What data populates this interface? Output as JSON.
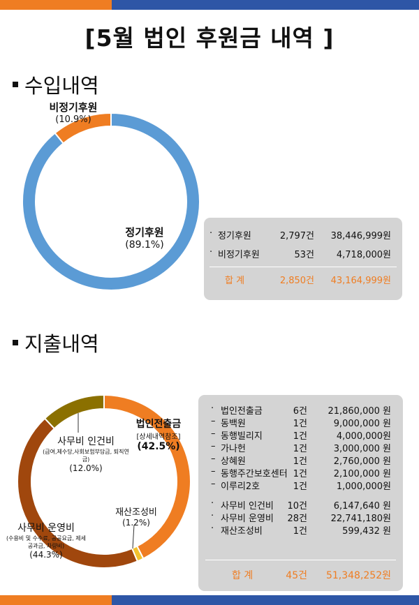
{
  "title": "[5월 법인 후원금 내역 ]",
  "sections": {
    "income": "수입내역",
    "expense": "지출내역"
  },
  "colors": {
    "orange": "#ef7d22",
    "blue": "#5b9bd5",
    "navy": "#2e56a6",
    "brown": "#a0470d",
    "olive": "#8b7000",
    "yellow": "#f2c12e",
    "gray_box": "#d4d4d4"
  },
  "income_table": {
    "rows": [
      {
        "bullet": "·",
        "name": "정기후원",
        "count": "2,797건",
        "amount": "38,446,999원"
      },
      {
        "bullet": "·",
        "name": "비정기후원",
        "count": "53건",
        "amount": "4,718,000원"
      }
    ],
    "total": {
      "label": "합  계",
      "count": "2,850건",
      "amount": "43,164,999원"
    }
  },
  "expense_table": {
    "rows": [
      {
        "bullet": "·",
        "name": "법인전출금",
        "count": "6건",
        "amount": "21,860,000 원"
      },
      {
        "bullet": "–",
        "name": "동백원",
        "count": "1건",
        "amount": "9,000,000 원"
      },
      {
        "bullet": "–",
        "name": "동행빌리지",
        "count": "1건",
        "amount": "4,000,000원"
      },
      {
        "bullet": "–",
        "name": "가나헌",
        "count": "1건",
        "amount": "3,000,000 원"
      },
      {
        "bullet": "–",
        "name": "상혜원",
        "count": "1건",
        "amount": "2,760,000 원"
      },
      {
        "bullet": "–",
        "name": "동행주간보호센터",
        "count": "1건",
        "amount": "2,100,000 원"
      },
      {
        "bullet": "–",
        "name": "이루리2호",
        "count": "1건",
        "amount": "1,000,000원"
      },
      {
        "bullet": "·",
        "name": "사무비 인건비",
        "count": "10건",
        "amount": "6,147,640 원"
      },
      {
        "bullet": "·",
        "name": "사무비 운영비",
        "count": "28건",
        "amount": "22,741,180원"
      },
      {
        "bullet": "·",
        "name": "재산조성비",
        "count": "1건",
        "amount": "599,432 원"
      }
    ],
    "total": {
      "label": "합  계",
      "count": "45건",
      "amount": "51,348,252원"
    }
  },
  "chart_data": [
    {
      "type": "pie",
      "donut": true,
      "slices": [
        {
          "label": "정기후원",
          "value": 89.1,
          "pct_text": "(89.1%)",
          "color": "#5b9bd5"
        },
        {
          "label": "비정기후원",
          "value": 10.9,
          "pct_text": "(10.9%)",
          "color": "#ef7d22"
        }
      ]
    },
    {
      "type": "pie",
      "donut": true,
      "slices": [
        {
          "label": "법인전출금",
          "note": "[상세내역참조]",
          "value": 42.5,
          "pct_text": "(42.5%)",
          "color": "#ef7d22"
        },
        {
          "label": "재산조성비",
          "note": "",
          "value": 1.2,
          "pct_text": "(1.2%)",
          "color": "#f2c12e"
        },
        {
          "label": "사무비 운영비",
          "note": "(수용비 및 수수료, 공공요금, 제세공과금, 차량비)",
          "value": 44.3,
          "pct_text": "(44.3%)",
          "color": "#a0470d"
        },
        {
          "label": "사무비 인건비",
          "note": "(급여,제수당,사회보험부담금, 퇴직연금)",
          "value": 12.0,
          "pct_text": "(12.0%)",
          "color": "#8b7000"
        }
      ]
    }
  ]
}
